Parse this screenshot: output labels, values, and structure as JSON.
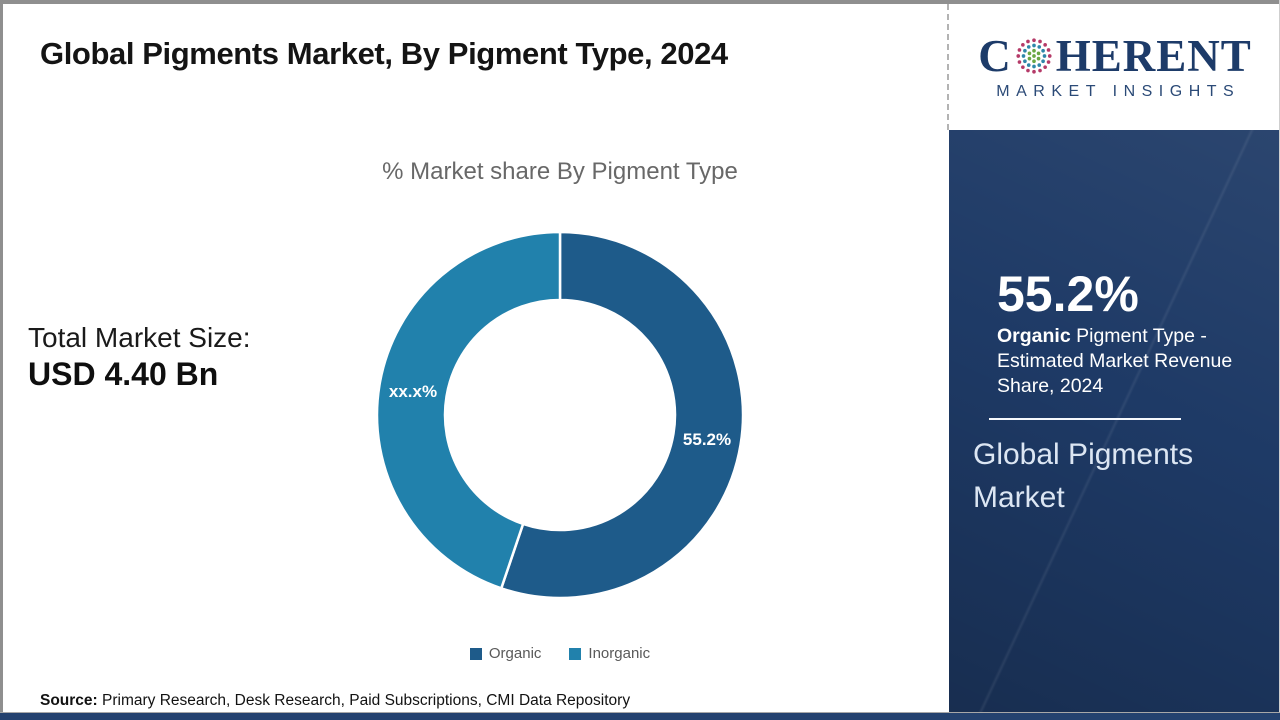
{
  "header": {
    "title": "Global Pigments Market, By Pigment Type, 2024"
  },
  "logo": {
    "brand_prefix": "C",
    "brand_suffix": "HERENT",
    "brand_subtitle": "MARKET INSIGHTS",
    "globe_icon": "coherent-globe-icon",
    "brand_color": "#1d3b69"
  },
  "left_panel": {
    "total_market_label": "Total Market Size:",
    "total_market_value": "USD 4.40 Bn"
  },
  "chart_data": {
    "type": "pie",
    "subtype": "donut",
    "title": "% Market share By Pigment Type",
    "categories": [
      "Organic",
      "Inorganic"
    ],
    "values": [
      55.2,
      44.8
    ],
    "slice_labels": [
      "55.2%",
      "xx.x%"
    ],
    "colors": [
      "#1e5b8a",
      "#2181ac"
    ],
    "start_angle_deg": 0,
    "direction": "clockwise",
    "inner_radius_ratio": 0.63,
    "legend_position": "bottom"
  },
  "sidebar": {
    "bg_color": "#1e3a66",
    "stat_value": "55.2%",
    "stat_label_bold": "Organic",
    "stat_label_rest": " Pigment Type - Estimated Market Revenue Share, 2024",
    "market_name": "Global Pigments Market"
  },
  "footer": {
    "source_label": "Source:",
    "source_text": " Primary Research, Desk Research, Paid Subscriptions, CMI Data Repository"
  }
}
